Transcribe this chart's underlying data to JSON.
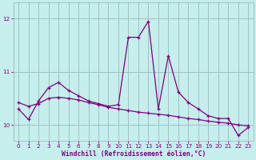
{
  "xlabel": "Windchill (Refroidissement éolien,°C)",
  "background_color": "#c5eeed",
  "line_color": "#800080",
  "grid_color": "#99bbbb",
  "ylim": [
    9.7,
    12.3
  ],
  "xlim": [
    -0.5,
    23.5
  ],
  "yticks": [
    10,
    11,
    12
  ],
  "ytick_labels": [
    "10",
    "11",
    "12"
  ],
  "xticks": [
    0,
    1,
    2,
    3,
    4,
    5,
    6,
    7,
    8,
    9,
    10,
    11,
    12,
    13,
    14,
    15,
    16,
    17,
    18,
    19,
    20,
    21,
    22,
    23
  ],
  "series1_x": [
    0,
    1,
    2,
    3,
    4,
    5,
    6,
    7,
    8,
    9,
    10,
    11,
    12,
    13,
    14,
    15,
    16,
    17,
    18,
    19,
    20,
    21,
    22,
    23
  ],
  "series1_y": [
    10.3,
    10.1,
    10.45,
    10.7,
    10.8,
    10.65,
    10.55,
    10.45,
    10.4,
    10.35,
    10.38,
    11.65,
    11.65,
    11.95,
    10.3,
    11.3,
    10.62,
    10.42,
    10.3,
    10.17,
    10.12,
    10.12,
    9.8,
    9.95
  ],
  "series2_x": [
    0,
    1,
    2,
    3,
    4,
    5,
    6,
    7,
    8,
    9,
    10,
    11,
    12,
    13,
    14,
    15,
    16,
    17,
    18,
    19,
    20,
    21,
    22,
    23
  ],
  "series2_y": [
    10.42,
    10.35,
    10.4,
    10.5,
    10.52,
    10.5,
    10.47,
    10.42,
    10.38,
    10.33,
    10.3,
    10.27,
    10.24,
    10.22,
    10.2,
    10.18,
    10.15,
    10.12,
    10.1,
    10.07,
    10.05,
    10.03,
    10.0,
    9.98
  ],
  "marker": "+",
  "markersize": 3,
  "markeredgewidth": 0.9,
  "linewidth": 0.9,
  "tick_fontsize": 5.2,
  "xlabel_fontsize": 5.8
}
